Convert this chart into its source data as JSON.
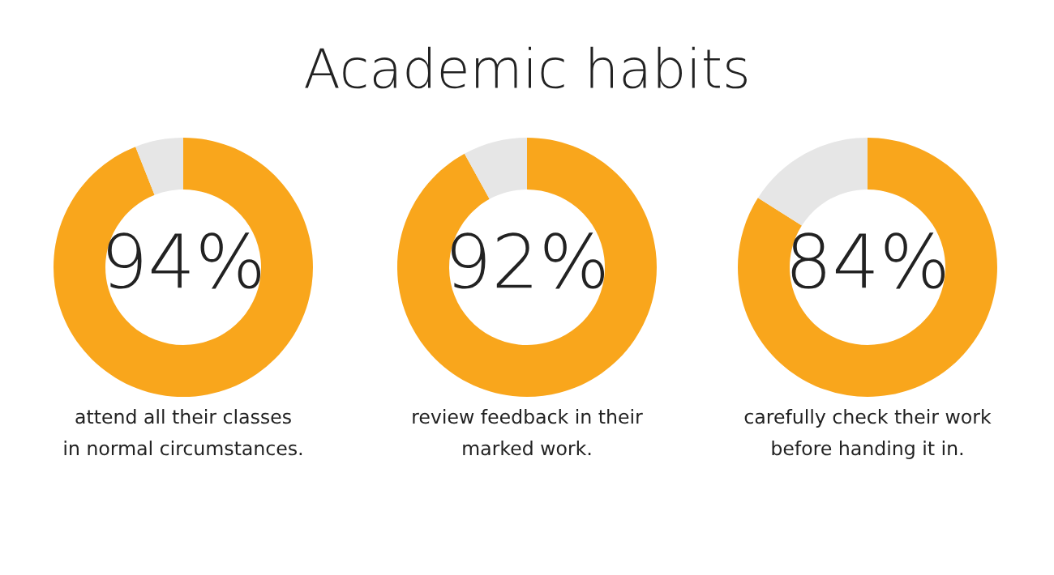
{
  "chart_data": [
    {
      "type": "donut",
      "categories": [
        null,
        null
      ],
      "values": [
        94,
        6
      ],
      "colors": [
        "#f9a61c",
        "#e6e6e6"
      ],
      "value_labels": [
        "94%",
        null
      ],
      "annotations": [
        "attend all their classes\nin normal circumstances."
      ]
    },
    {
      "type": "donut",
      "title": "Academic habits",
      "categories": [
        null,
        null
      ],
      "values": [
        92,
        8
      ],
      "colors": [
        "#f9a61c",
        "#e6e6e6"
      ],
      "value_labels": [
        "92%",
        null
      ],
      "annotations": [
        "review feedback in their\nmarked work."
      ]
    },
    {
      "type": "donut",
      "categories": [
        null,
        null
      ],
      "values": [
        84,
        16
      ],
      "colors": [
        "#f9a61c",
        "#e6e6e6"
      ],
      "value_labels": [
        "84%",
        null
      ],
      "annotations": [
        "carefully check their work\nbefore handing it in."
      ]
    }
  ]
}
